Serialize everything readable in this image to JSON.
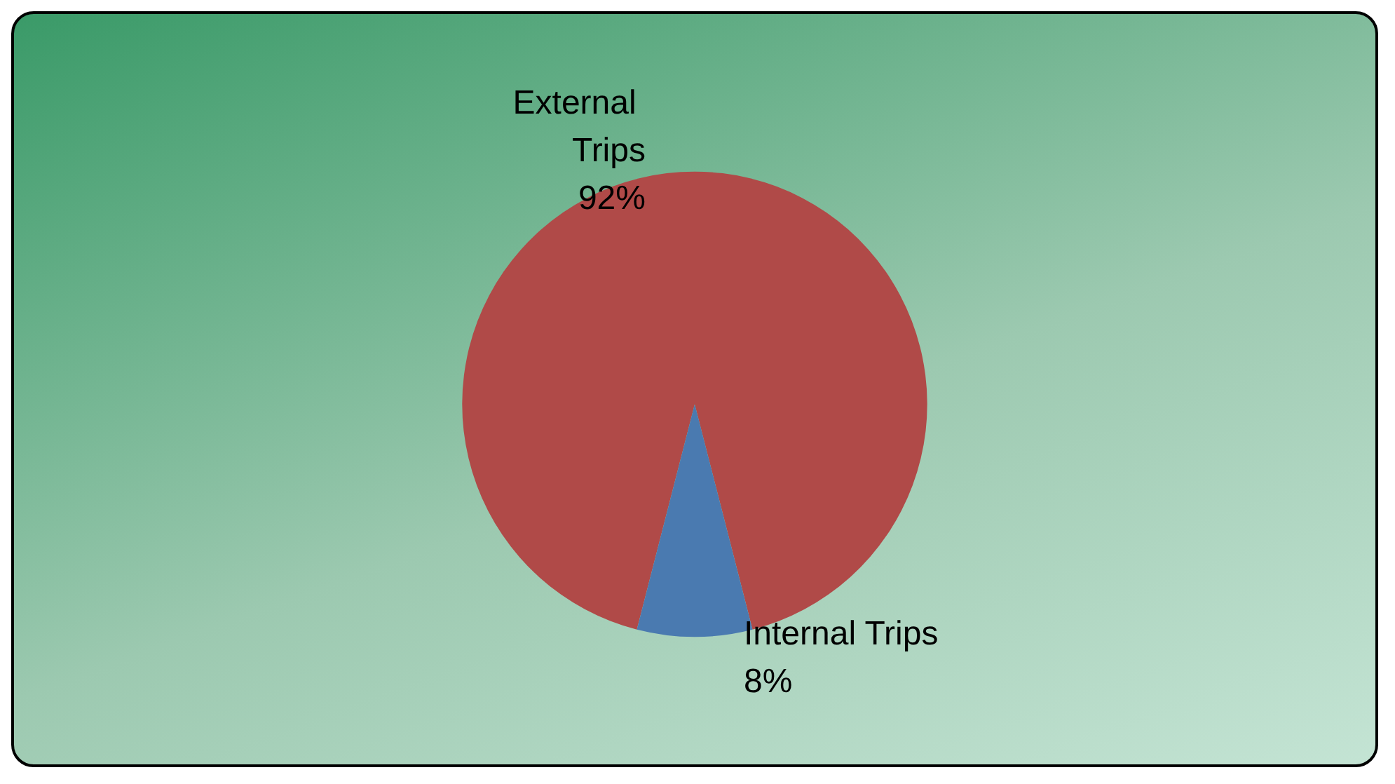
{
  "chart_data": {
    "type": "pie",
    "categories": [
      "External Trips",
      "Internal Trips"
    ],
    "values": [
      92,
      8
    ],
    "colors": [
      "#b04a48",
      "#4a7ab0"
    ],
    "value_labels": [
      "92%",
      "8%"
    ],
    "legend": false
  }
}
